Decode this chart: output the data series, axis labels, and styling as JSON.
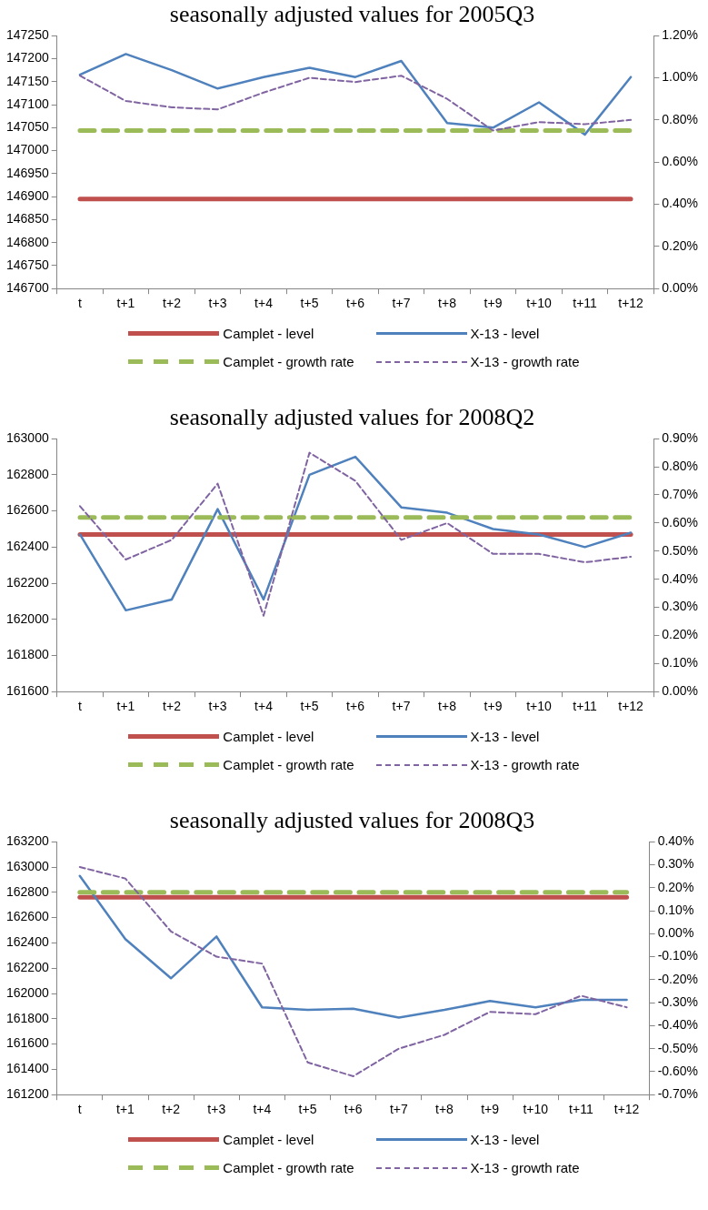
{
  "chart_data": [
    {
      "type": "line",
      "title": "seasonally adjusted values for 2005Q3",
      "categories": [
        "t",
        "t+1",
        "t+2",
        "t+3",
        "t+4",
        "t+5",
        "t+6",
        "t+7",
        "t+8",
        "t+9",
        "t+10",
        "t+11",
        "t+12"
      ],
      "ylim": [
        146700,
        147250
      ],
      "yticks": [
        146700,
        146750,
        146800,
        146850,
        146900,
        146950,
        147000,
        147050,
        147100,
        147150,
        147200,
        147250
      ],
      "y2lim": [
        0,
        1.2
      ],
      "y2ticks": [
        {
          "value": 0,
          "label": "0.00%"
        },
        {
          "value": 0.2,
          "label": "0.20%"
        },
        {
          "value": 0.4,
          "label": "0.40%"
        },
        {
          "value": 0.6,
          "label": "0.60%"
        },
        {
          "value": 0.8,
          "label": "0.80%"
        },
        {
          "value": 1.0,
          "label": "1.00%"
        },
        {
          "value": 1.2,
          "label": "1.20%"
        }
      ],
      "grid": false,
      "legend": "bottom",
      "marker": "none",
      "series": [
        {
          "name": "Camplet - level",
          "color": "#c0504d",
          "line_style": "solid",
          "values": [
            146895,
            146895,
            146895,
            146895,
            146895,
            146895,
            146895,
            146895,
            146895,
            146895,
            146895,
            146895,
            146895
          ]
        },
        {
          "name": "X-13 - level",
          "color": "#4f81bd",
          "line_style": "solid",
          "values": [
            147165,
            147210,
            147175,
            147135,
            147160,
            147180,
            147160,
            147195,
            147060,
            147050,
            147105,
            147035,
            147160
          ]
        },
        {
          "name": "Camplet - growth rate",
          "color": "#9bbb59",
          "line_style": "dashed",
          "axis": "y2",
          "values": [
            0.75,
            0.75,
            0.75,
            0.75,
            0.75,
            0.75,
            0.75,
            0.75,
            0.75,
            0.75,
            0.75,
            0.75,
            0.75
          ]
        },
        {
          "name": "X-13 - growth rate",
          "color": "#8064a2",
          "line_style": "dashed",
          "axis": "y2",
          "values": [
            1.01,
            0.89,
            0.86,
            0.85,
            0.93,
            1.0,
            0.98,
            1.01,
            0.9,
            0.75,
            0.79,
            0.78,
            0.8
          ]
        }
      ]
    },
    {
      "type": "line",
      "title": "seasonally adjusted values for 2008Q2",
      "categories": [
        "t",
        "t+1",
        "t+2",
        "t+3",
        "t+4",
        "t+5",
        "t+6",
        "t+7",
        "t+8",
        "t+9",
        "t+10",
        "t+11",
        "t+12"
      ],
      "ylim": [
        161600,
        163000
      ],
      "yticks": [
        161600,
        161800,
        162000,
        162200,
        162400,
        162600,
        162800,
        163000
      ],
      "y2lim": [
        0,
        0.9
      ],
      "y2ticks": [
        {
          "value": 0,
          "label": "0.00%"
        },
        {
          "value": 0.1,
          "label": "0.10%"
        },
        {
          "value": 0.2,
          "label": "0.20%"
        },
        {
          "value": 0.3,
          "label": "0.30%"
        },
        {
          "value": 0.4,
          "label": "0.40%"
        },
        {
          "value": 0.5,
          "label": "0.50%"
        },
        {
          "value": 0.6,
          "label": "0.60%"
        },
        {
          "value": 0.7,
          "label": "0.70%"
        },
        {
          "value": 0.8,
          "label": "0.80%"
        },
        {
          "value": 0.9,
          "label": "0.90%"
        }
      ],
      "grid": false,
      "legend": "bottom",
      "marker": "none",
      "series": [
        {
          "name": "Camplet - level",
          "color": "#c0504d",
          "line_style": "solid",
          "values": [
            162470,
            162470,
            162470,
            162470,
            162470,
            162470,
            162470,
            162470,
            162470,
            162470,
            162470,
            162470,
            162470
          ]
        },
        {
          "name": "X-13 - level",
          "color": "#4f81bd",
          "line_style": "solid",
          "values": [
            162470,
            162050,
            162110,
            162610,
            162110,
            162800,
            162900,
            162620,
            162590,
            162500,
            162470,
            162400,
            162480
          ]
        },
        {
          "name": "Camplet - growth rate",
          "color": "#9bbb59",
          "line_style": "dashed",
          "axis": "y2",
          "values": [
            0.62,
            0.62,
            0.62,
            0.62,
            0.62,
            0.62,
            0.62,
            0.62,
            0.62,
            0.62,
            0.62,
            0.62,
            0.62
          ]
        },
        {
          "name": "X-13 - growth rate",
          "color": "#8064a2",
          "line_style": "dashed",
          "axis": "y2",
          "values": [
            0.66,
            0.47,
            0.54,
            0.74,
            0.27,
            0.85,
            0.75,
            0.54,
            0.6,
            0.49,
            0.49,
            0.46,
            0.48
          ]
        }
      ]
    },
    {
      "type": "line",
      "title": "seasonally adjusted values for 2008Q3",
      "categories": [
        "t",
        "t+1",
        "t+2",
        "t+3",
        "t+4",
        "t+5",
        "t+6",
        "t+7",
        "t+8",
        "t+9",
        "t+10",
        "t+11",
        "t+12"
      ],
      "ylim": [
        161200,
        163200
      ],
      "yticks": [
        161200,
        161400,
        161600,
        161800,
        162000,
        162200,
        162400,
        162600,
        162800,
        163000,
        163200
      ],
      "y2lim": [
        -0.7,
        0.4
      ],
      "y2ticks": [
        {
          "value": -0.7,
          "label": "-0.70%"
        },
        {
          "value": -0.6,
          "label": "-0.60%"
        },
        {
          "value": -0.5,
          "label": "-0.50%"
        },
        {
          "value": -0.4,
          "label": "-0.40%"
        },
        {
          "value": -0.3,
          "label": "-0.30%"
        },
        {
          "value": -0.2,
          "label": "-0.20%"
        },
        {
          "value": -0.1,
          "label": "-0.10%"
        },
        {
          "value": 0,
          "label": "0.00%"
        },
        {
          "value": 0.1,
          "label": "0.10%"
        },
        {
          "value": 0.2,
          "label": "0.20%"
        },
        {
          "value": 0.3,
          "label": "0.30%"
        },
        {
          "value": 0.4,
          "label": "0.40%"
        }
      ],
      "grid": false,
      "legend": "bottom",
      "marker": "none",
      "series": [
        {
          "name": "Camplet - level",
          "color": "#c0504d",
          "line_style": "solid",
          "values": [
            162760,
            162760,
            162760,
            162760,
            162760,
            162760,
            162760,
            162760,
            162760,
            162760,
            162760,
            162760,
            162760
          ]
        },
        {
          "name": "X-13 - level",
          "color": "#4f81bd",
          "line_style": "solid",
          "values": [
            162930,
            162430,
            162120,
            162450,
            161890,
            161870,
            161880,
            161810,
            161870,
            161940,
            161890,
            161950,
            161950
          ]
        },
        {
          "name": "Camplet - growth rate",
          "color": "#9bbb59",
          "line_style": "dashed",
          "axis": "y2",
          "values": [
            0.18,
            0.18,
            0.18,
            0.18,
            0.18,
            0.18,
            0.18,
            0.18,
            0.18,
            0.18,
            0.18,
            0.18,
            0.18
          ]
        },
        {
          "name": "X-13 - growth rate",
          "color": "#8064a2",
          "line_style": "dashed",
          "axis": "y2",
          "values": [
            0.29,
            0.24,
            0.01,
            -0.1,
            -0.13,
            -0.56,
            -0.62,
            -0.5,
            -0.44,
            -0.34,
            -0.35,
            -0.27,
            -0.32
          ]
        }
      ]
    }
  ]
}
